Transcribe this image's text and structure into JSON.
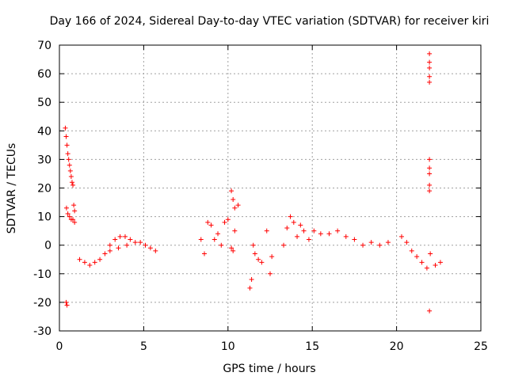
{
  "chart_data": {
    "type": "scatter",
    "title": "Day 166 of 2024, Sidereal Day-to-day VTEC variation (SDTVAR) for receiver kiri",
    "xlabel": "GPS time / hours",
    "ylabel": "SDTVAR / TECUs",
    "xlim": [
      0,
      25
    ],
    "ylim": [
      -30,
      70
    ],
    "xticks": [
      0,
      5,
      10,
      15,
      20,
      25
    ],
    "yticks": [
      -30,
      -20,
      -10,
      0,
      10,
      20,
      30,
      40,
      50,
      60,
      70
    ],
    "grid": true,
    "marker": "+",
    "color": "#ff0000",
    "series": [
      {
        "name": "SDTVAR",
        "x": [
          0.35,
          0.4,
          0.45,
          0.5,
          0.55,
          0.6,
          0.65,
          0.7,
          0.75,
          0.8,
          0.85,
          0.9,
          0.42,
          0.5,
          0.6,
          0.7,
          0.8,
          0.9,
          0.4,
          0.45,
          1.2,
          1.5,
          1.8,
          2.1,
          2.4,
          2.7,
          3.0,
          3.3,
          3.6,
          3.9,
          4.2,
          4.5,
          4.8,
          5.1,
          5.4,
          5.7,
          3.0,
          3.5,
          4.0,
          8.4,
          8.6,
          8.8,
          9.0,
          9.2,
          9.4,
          9.6,
          9.8,
          10.0,
          10.2,
          10.3,
          10.4,
          10.6,
          10.2,
          10.3,
          10.4,
          11.3,
          11.4,
          11.5,
          11.6,
          11.8,
          12.0,
          12.3,
          12.5,
          12.6,
          13.3,
          13.5,
          13.7,
          13.9,
          14.1,
          14.3,
          14.5,
          14.8,
          15.1,
          15.5,
          16.0,
          16.5,
          17.0,
          17.5,
          18.0,
          18.5,
          19.0,
          19.5,
          20.3,
          20.6,
          20.9,
          21.2,
          21.5,
          21.8,
          22.0,
          22.3,
          22.6,
          21.95,
          21.95,
          21.95,
          21.95,
          21.95,
          21.95,
          21.95,
          21.95,
          21.95,
          21.95,
          21.95
        ],
        "y": [
          41,
          38,
          35,
          32,
          30,
          28,
          26,
          24,
          22,
          21,
          14,
          12,
          13,
          11,
          10,
          9,
          9,
          8,
          -20,
          -21,
          -5,
          -6,
          -7,
          -6,
          -5,
          -3,
          0,
          2,
          3,
          3,
          2,
          1,
          1,
          0,
          -1,
          -2,
          -2,
          -1,
          0,
          2,
          -3,
          8,
          7,
          2,
          4,
          0,
          8,
          9,
          19,
          16,
          13,
          14,
          -1,
          -2,
          5,
          -15,
          -12,
          0,
          -3,
          -5,
          -6,
          5,
          -10,
          -4,
          0,
          6,
          10,
          8,
          3,
          7,
          5,
          2,
          5,
          4,
          4,
          5,
          3,
          2,
          0,
          1,
          0,
          1,
          3,
          1,
          -2,
          -4,
          -6,
          -8,
          -3,
          -7,
          -6,
          67,
          64,
          62,
          59,
          57,
          30,
          27,
          25,
          21,
          19,
          -23
        ]
      }
    ]
  }
}
